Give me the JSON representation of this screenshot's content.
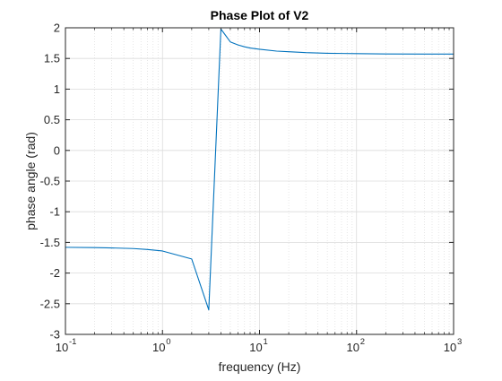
{
  "chart_data": {
    "type": "line",
    "title": "Phase Plot of V2",
    "xlabel": "frequency (Hz)",
    "ylabel": "phase angle (rad)",
    "xscale": "log",
    "xlim": [
      0.1,
      1000
    ],
    "ylim": [
      -3,
      2
    ],
    "grid": true,
    "minor_grid": true,
    "yticks": [
      -3,
      -2.5,
      -2,
      -1.5,
      -1,
      -0.5,
      0,
      0.5,
      1,
      1.5,
      2
    ],
    "ytick_labels": [
      "-3",
      "-2.5",
      "-2",
      "-1.5",
      "-1",
      "-0.5",
      "0",
      "0.5",
      "1",
      "1.5",
      "2"
    ],
    "xticks": [
      0.1,
      1,
      10,
      100,
      1000
    ],
    "xtick_base": "10",
    "xtick_exponents": [
      "-1",
      "0",
      "1",
      "2",
      "3"
    ],
    "series": [
      {
        "color": "#0072BD",
        "x": [
          0.1,
          0.2,
          0.3,
          0.5,
          0.7,
          1,
          2,
          3,
          4,
          5,
          6,
          7,
          8,
          10,
          15,
          20,
          30,
          50,
          100,
          200,
          500,
          1000
        ],
        "y": [
          -1.58,
          -1.585,
          -1.59,
          -1.6,
          -1.615,
          -1.64,
          -1.77,
          -2.6,
          1.98,
          1.77,
          1.72,
          1.69,
          1.67,
          1.65,
          1.62,
          1.61,
          1.595,
          1.585,
          1.578,
          1.574,
          1.572,
          1.571
        ]
      }
    ],
    "colors": {
      "axis": "#262626",
      "grid": "#dcdcdc",
      "line": "#0072BD"
    }
  }
}
